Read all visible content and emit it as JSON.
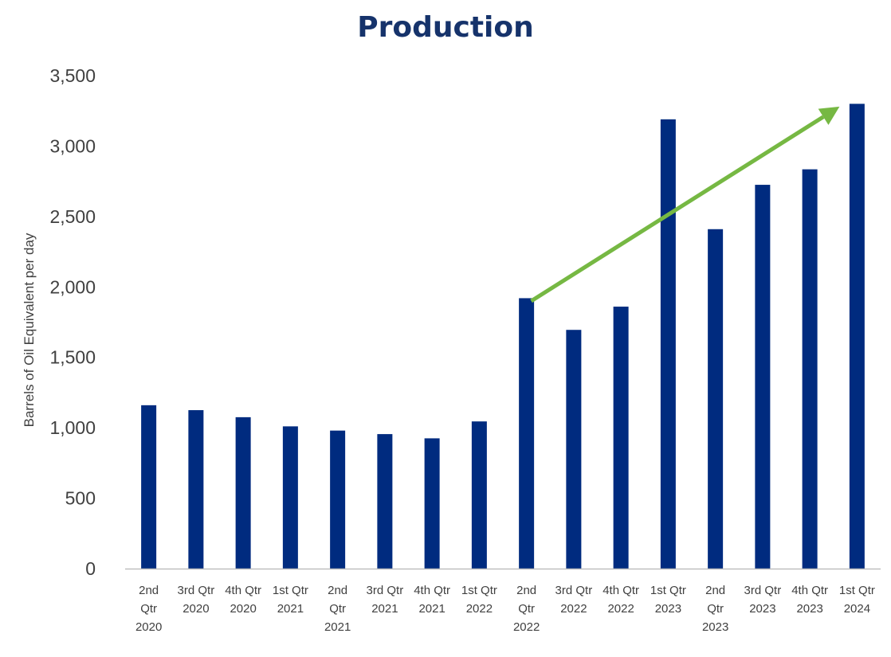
{
  "chart_data": {
    "type": "bar",
    "title": "Production",
    "ylabel": "Barrels of Oil Equivalent per day",
    "xlabel": "",
    "ylim": [
      0,
      3500
    ],
    "yticks": [
      0,
      500,
      1000,
      1500,
      2000,
      2500,
      3000,
      3500
    ],
    "ytick_labels": [
      "0",
      "500",
      "1,000",
      "1,500",
      "2,000",
      "2,500",
      "3,000",
      "3,500"
    ],
    "categories": [
      [
        "2nd",
        "Qtr",
        "2020"
      ],
      [
        "3rd Qtr",
        "2020"
      ],
      [
        "4th Qtr",
        "2020"
      ],
      [
        "1st Qtr",
        "2021"
      ],
      [
        "2nd",
        "Qtr",
        "2021"
      ],
      [
        "3rd Qtr",
        "2021"
      ],
      [
        "4th Qtr",
        "2021"
      ],
      [
        "1st Qtr",
        "2022"
      ],
      [
        "2nd",
        "Qtr",
        "2022"
      ],
      [
        "3rd Qtr",
        "2022"
      ],
      [
        "4th Qtr",
        "2022"
      ],
      [
        "1st Qtr",
        "2023"
      ],
      [
        "2nd",
        "Qtr",
        "2023"
      ],
      [
        "3rd Qtr",
        "2023"
      ],
      [
        "4th Qtr",
        "2023"
      ],
      [
        "1st Qtr",
        "2024"
      ]
    ],
    "values": [
      1160,
      1125,
      1075,
      1010,
      980,
      955,
      925,
      1045,
      1920,
      1695,
      1860,
      3190,
      2410,
      2725,
      2835,
      3300
    ],
    "grid": false,
    "legend": "none",
    "bar_color": "#002b7f",
    "annotation": {
      "type": "trend-arrow",
      "color": "#76b843",
      "from": {
        "category_index": 8.6,
        "y": 1900
      },
      "to": {
        "category_index": 15,
        "y": 3280
      }
    }
  }
}
